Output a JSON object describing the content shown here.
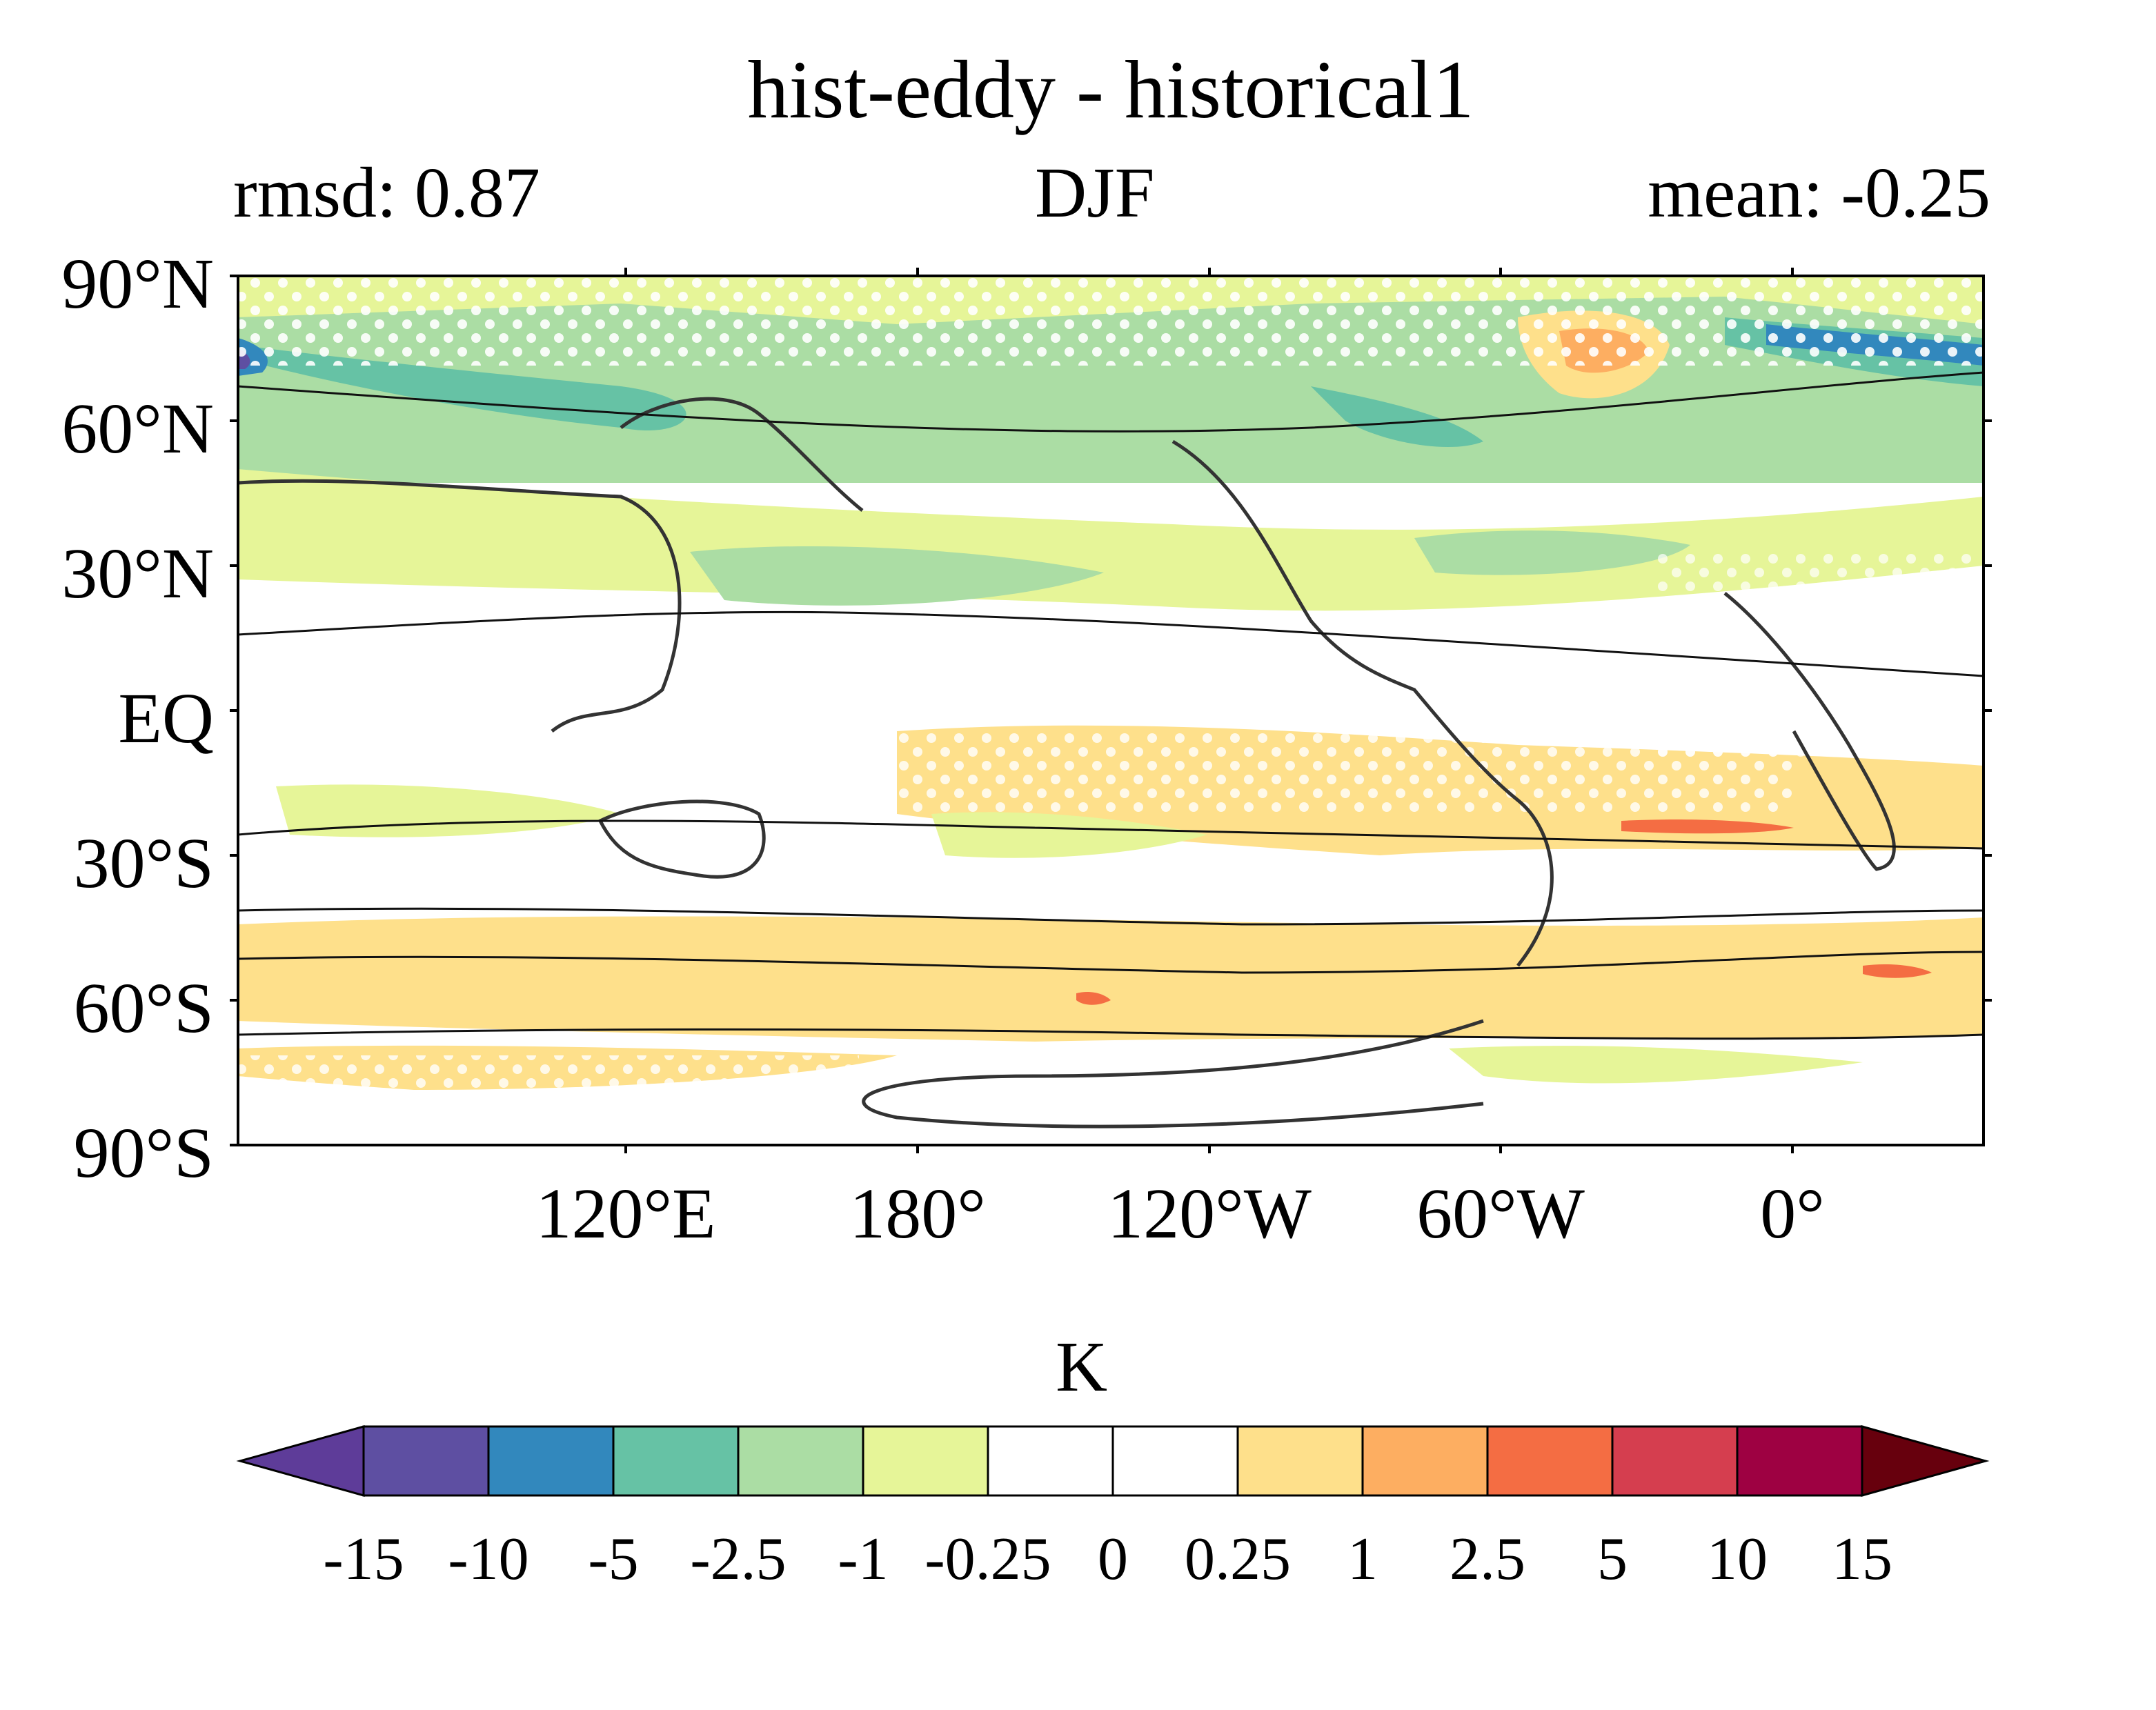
{
  "title": "hist-eddy - historical1",
  "left_subtitle": "rmsd: 0.87",
  "center_subtitle": "DJF",
  "right_subtitle": "mean: -0.25",
  "map": {
    "projection": "equirectangular",
    "central_longitude": 180,
    "lat_range": [
      -90,
      90
    ],
    "lon_range": [
      30,
      390
    ],
    "y_ticks": [
      "90°N",
      "60°N",
      "30°N",
      "EQ",
      "30°S",
      "60°S",
      "90°S"
    ],
    "x_ticks": [
      "120°E",
      "180°",
      "120°W",
      "60°W",
      "0°"
    ],
    "stippling": "white dots over regions of significance",
    "contours": "black climatology contours and coastlines"
  },
  "colorbar": {
    "unit": "K",
    "levels": [
      "-15",
      "-10",
      "-5",
      "-2.5",
      "-1",
      "-0.25",
      "0",
      "0.25",
      "1",
      "2.5",
      "5",
      "10",
      "15"
    ],
    "colors": [
      "#5e3c99",
      "#5e4fa2",
      "#3288bd",
      "#66c2a5",
      "#abdda4",
      "#e6f598",
      "#ffffff",
      "#ffffff",
      "#fee08b",
      "#fdae61",
      "#f46d43",
      "#d53e4f",
      "#9e0142",
      "#67000d"
    ],
    "extend": "both"
  }
}
